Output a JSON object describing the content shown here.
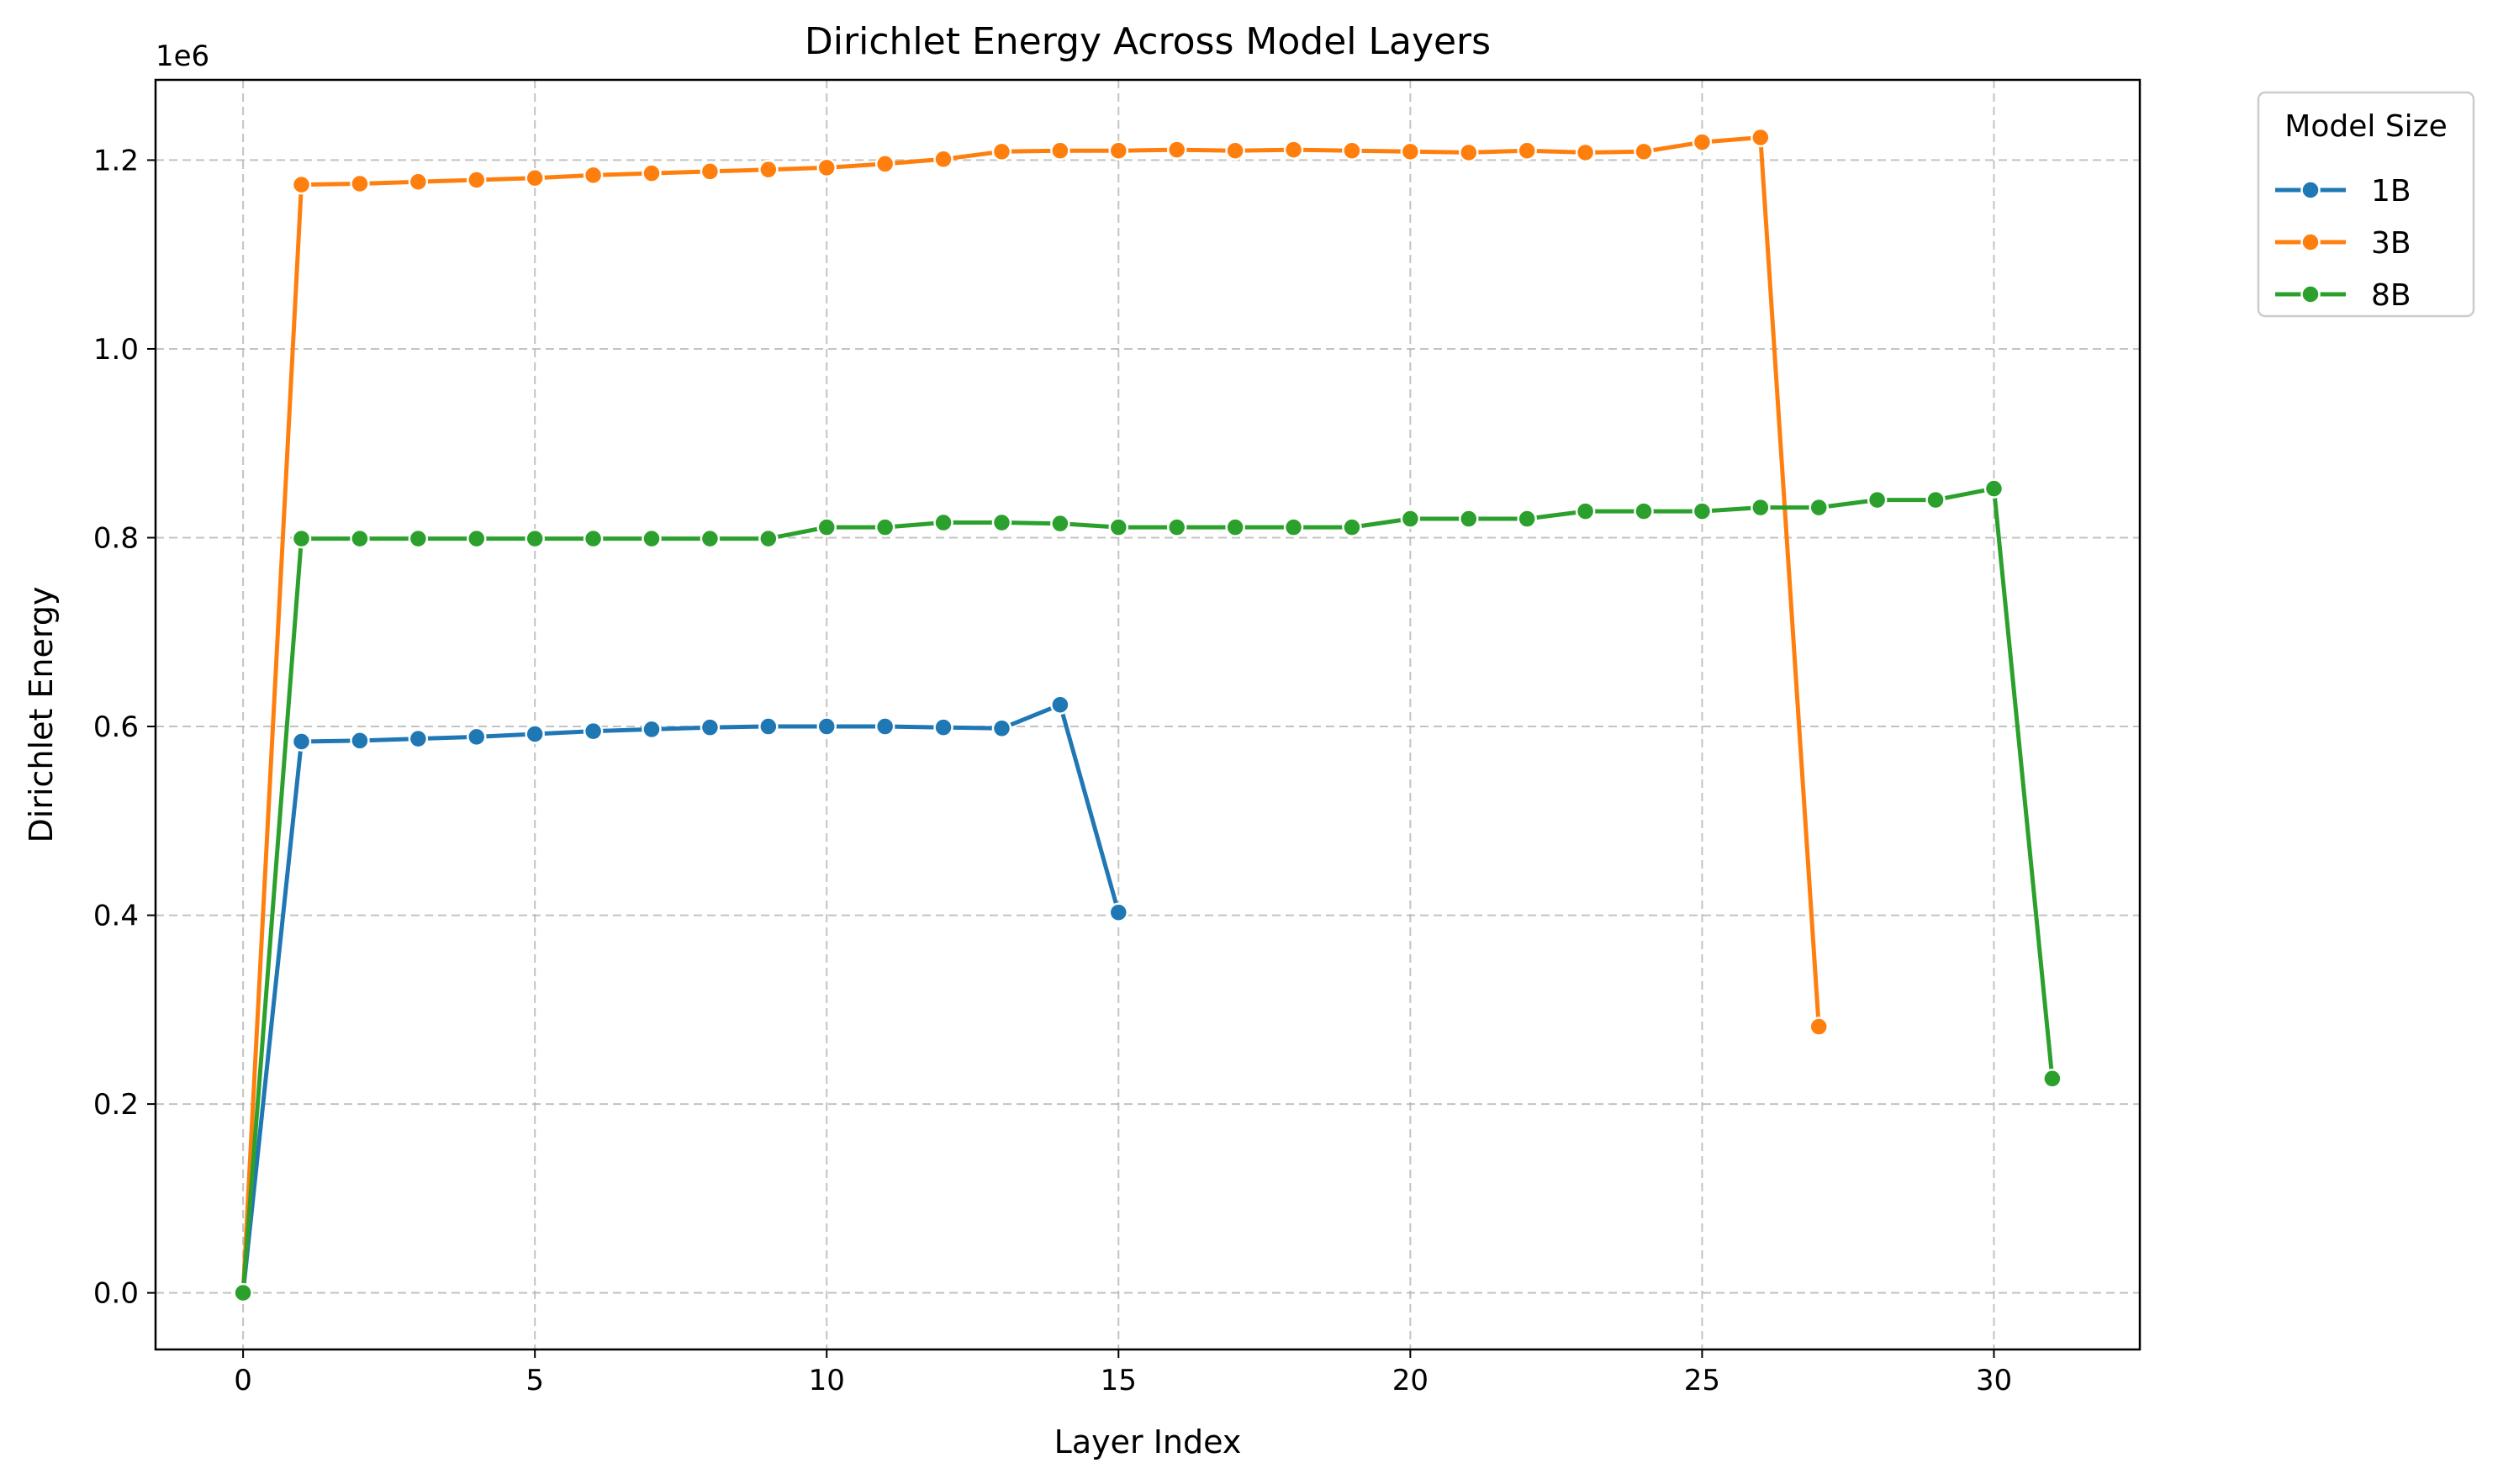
{
  "chart_data": {
    "type": "line",
    "title": "Dirichlet Energy Across Model Layers",
    "xlabel": "Layer Index",
    "ylabel": "Dirichlet Energy",
    "y_offset_label": "1e6",
    "xlim": [
      -1.5,
      32.5
    ],
    "ylim": [
      -0.06,
      1.285
    ],
    "x_ticks": [
      0,
      5,
      10,
      15,
      20,
      25,
      30
    ],
    "x_tick_labels": [
      "0",
      "5",
      "10",
      "15",
      "20",
      "25",
      "30"
    ],
    "y_ticks": [
      0.0,
      0.2,
      0.4,
      0.6,
      0.8,
      1.0,
      1.2
    ],
    "y_tick_labels": [
      "0.0",
      "0.2",
      "0.4",
      "0.6",
      "0.8",
      "1.0",
      "1.2"
    ],
    "grid": true,
    "legend": {
      "title": "Model Size",
      "placement": "outside-top-right"
    },
    "series": [
      {
        "name": "1B",
        "color": "#1f77b4",
        "x": [
          0,
          1,
          2,
          3,
          4,
          5,
          6,
          7,
          8,
          9,
          10,
          11,
          12,
          13,
          14,
          15
        ],
        "y": [
          0.0,
          0.584,
          0.585,
          0.587,
          0.589,
          0.592,
          0.595,
          0.597,
          0.599,
          0.6,
          0.6,
          0.6,
          0.599,
          0.598,
          0.623,
          0.403
        ]
      },
      {
        "name": "3B",
        "color": "#ff7f0e",
        "x": [
          0,
          1,
          2,
          3,
          4,
          5,
          6,
          7,
          8,
          9,
          10,
          11,
          12,
          13,
          14,
          15,
          16,
          17,
          18,
          19,
          20,
          21,
          22,
          23,
          24,
          25,
          26,
          27
        ],
        "y": [
          0.0,
          1.174,
          1.175,
          1.177,
          1.179,
          1.181,
          1.184,
          1.186,
          1.188,
          1.19,
          1.192,
          1.196,
          1.201,
          1.209,
          1.21,
          1.21,
          1.211,
          1.21,
          1.211,
          1.21,
          1.209,
          1.208,
          1.21,
          1.208,
          1.209,
          1.219,
          1.224,
          0.282
        ]
      },
      {
        "name": "8B",
        "color": "#2ca02c",
        "x": [
          0,
          1,
          2,
          3,
          4,
          5,
          6,
          7,
          8,
          9,
          10,
          11,
          12,
          13,
          14,
          15,
          16,
          17,
          18,
          19,
          20,
          21,
          22,
          23,
          24,
          25,
          26,
          27,
          28,
          29,
          30,
          31
        ],
        "y": [
          0.0,
          0.799,
          0.799,
          0.799,
          0.799,
          0.799,
          0.799,
          0.799,
          0.799,
          0.799,
          0.811,
          0.811,
          0.816,
          0.816,
          0.815,
          0.811,
          0.811,
          0.811,
          0.811,
          0.811,
          0.82,
          0.82,
          0.82,
          0.828,
          0.828,
          0.828,
          0.832,
          0.832,
          0.84,
          0.84,
          0.852,
          0.227
        ]
      }
    ]
  }
}
